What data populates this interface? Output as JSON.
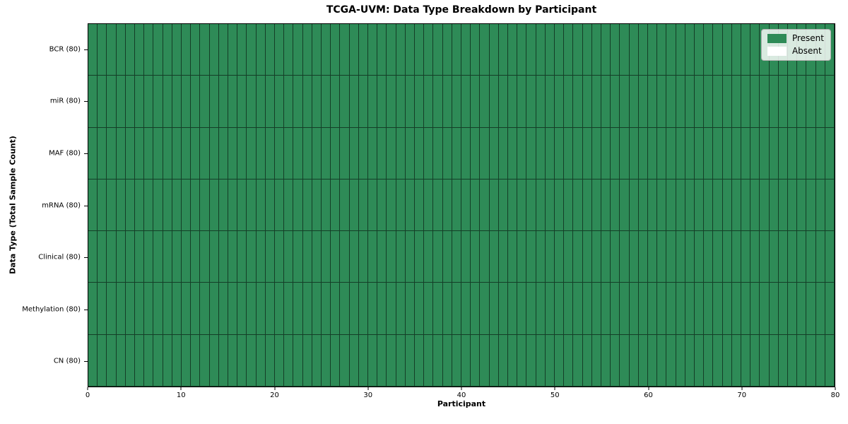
{
  "chart_data": {
    "type": "heatmap",
    "title": "TCGA-UVM: Data Type Breakdown by Participant",
    "xlabel": "Participant",
    "ylabel": "Data Type (Total Sample Count)",
    "x_range": [
      0,
      80
    ],
    "x_ticks": [
      0,
      10,
      20,
      30,
      40,
      50,
      60,
      70,
      80
    ],
    "n_participants": 80,
    "categories": [
      "BCR (80)",
      "miR (80)",
      "MAF (80)",
      "mRNA (80)",
      "Clinical (80)",
      "Methylation (80)",
      "CN (80)"
    ],
    "series": [
      {
        "name": "BCR (80)",
        "present": 80,
        "absent": 0
      },
      {
        "name": "miR (80)",
        "present": 80,
        "absent": 0
      },
      {
        "name": "MAF (80)",
        "present": 80,
        "absent": 0
      },
      {
        "name": "mRNA (80)",
        "present": 80,
        "absent": 0
      },
      {
        "name": "Clinical (80)",
        "present": 80,
        "absent": 0
      },
      {
        "name": "Methylation (80)",
        "present": 80,
        "absent": 0
      },
      {
        "name": "CN (80)",
        "present": 80,
        "absent": 0
      }
    ],
    "cell_encoding": {
      "present": 1,
      "absent": 0
    },
    "all_cells_present": true,
    "legend": {
      "position": "upper right",
      "entries": [
        {
          "label": "Present",
          "color": "#2e8b57"
        },
        {
          "label": "Absent",
          "color": "#ffffff"
        }
      ]
    },
    "colors": {
      "present": "#2e8b57",
      "absent": "#ffffff",
      "cell_border": "rgba(0,0,0,0.55)",
      "spine": "#000000"
    },
    "grid": "per-cell borders visible, no inner gridlines beyond cell edges"
  }
}
